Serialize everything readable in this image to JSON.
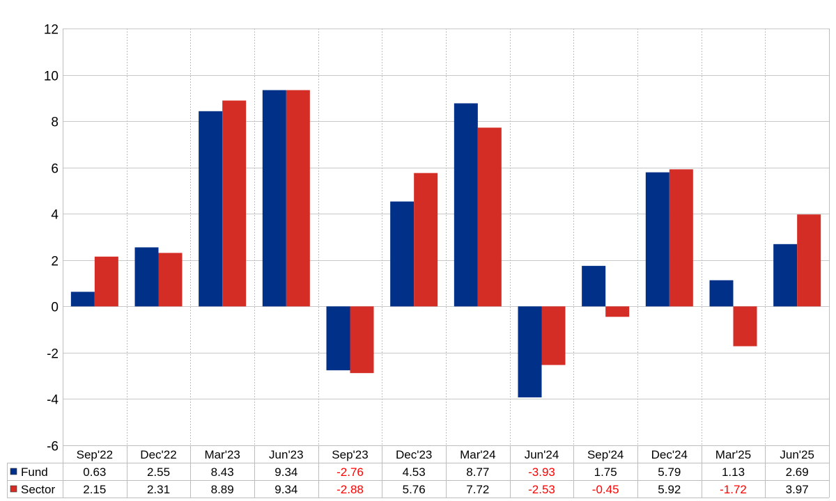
{
  "chart_data": {
    "type": "bar",
    "categories": [
      "Sep'22",
      "Dec'22",
      "Mar'23",
      "Jun'23",
      "Sep'23",
      "Dec'23",
      "Mar'24",
      "Jun'24",
      "Sep'24",
      "Dec'24",
      "Mar'25",
      "Jun'25"
    ],
    "series": [
      {
        "name": "Fund",
        "color": "#003087",
        "values": [
          0.63,
          2.55,
          8.43,
          9.34,
          -2.76,
          4.53,
          8.77,
          -3.93,
          1.75,
          5.79,
          1.13,
          2.69
        ]
      },
      {
        "name": "Sector",
        "color": "#d42d26",
        "values": [
          2.15,
          2.31,
          8.89,
          9.34,
          -2.88,
          5.76,
          7.72,
          -2.53,
          -0.45,
          5.92,
          -1.72,
          3.97
        ]
      }
    ],
    "ylim": [
      -6,
      12
    ],
    "yticks": [
      -6,
      -4,
      -2,
      0,
      2,
      4,
      6,
      8,
      10,
      12
    ],
    "grid": true,
    "legend": "data-table",
    "title": "",
    "xlabel": "",
    "ylabel": "",
    "negative_value_color": "#ff0000",
    "positive_value_color": "#000000"
  }
}
